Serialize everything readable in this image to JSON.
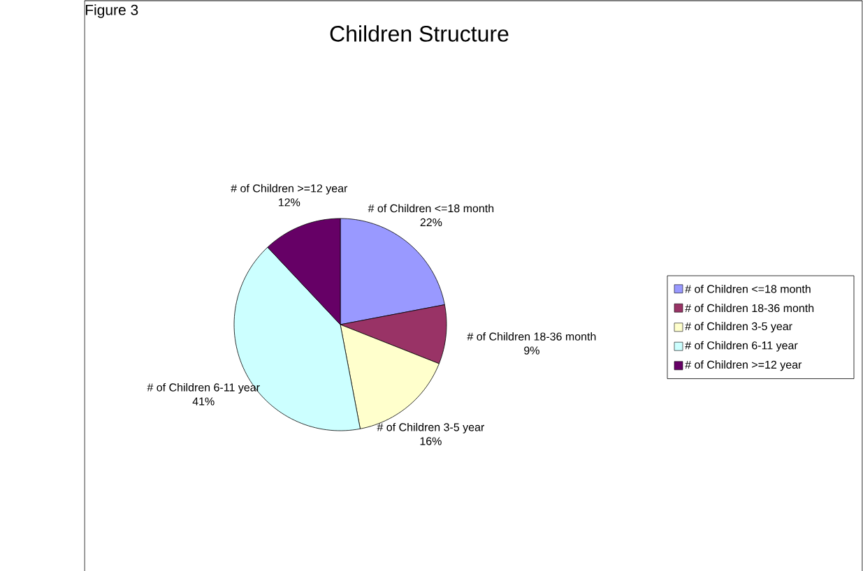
{
  "chart_data": {
    "type": "pie",
    "title": "Children Structure",
    "annotations": [
      "Figure 3"
    ],
    "categories": [
      "# of Children <=18 month",
      "# of Children 18-36 month",
      "# of Children 3-5 year",
      "# of Children 6-11 year",
      "# of Children >=12 year"
    ],
    "values": [
      22,
      9,
      16,
      41,
      12
    ],
    "value_labels": [
      "22%",
      "9%",
      "16%",
      "41%",
      "12%"
    ],
    "colors": [
      "#9999ff",
      "#993366",
      "#ffffcc",
      "#ccffff",
      "#660066"
    ],
    "legend": "right"
  }
}
